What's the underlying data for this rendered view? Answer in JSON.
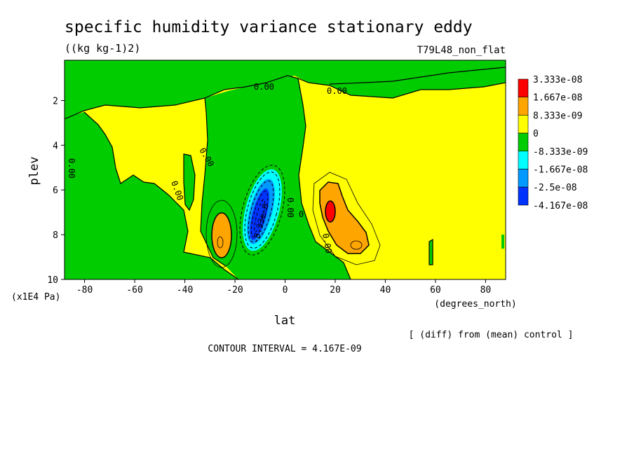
{
  "chart_data": {
    "type": "heatmap",
    "title": "specific humidity variance stationary eddy",
    "units": "((kg kg-1)2)",
    "run_label": "T79L48_non_flat",
    "xlabel": "lat",
    "xunits": "(degrees_north)",
    "ylabel": "plev",
    "yunits": "(x1E4 Pa)",
    "xlim": [
      -88,
      88
    ],
    "ylim": [
      10,
      0.2
    ],
    "x_ticks": [
      -80,
      -60,
      -40,
      -20,
      0,
      20,
      40,
      60,
      80
    ],
    "y_ticks": [
      2,
      4,
      6,
      8,
      10
    ],
    "colorbar": {
      "labels": [
        "3.333e-08",
        "1.667e-08",
        "8.333e-09",
        "0",
        "-8.333e-09",
        "-1.667e-08",
        "-2.5e-08",
        "-4.167e-08"
      ],
      "colors": [
        "#ff0000",
        "#ffa500",
        "#ffff00",
        "#00cc00",
        "#00ffff",
        "#0099ff",
        "#0033ff"
      ]
    },
    "contour_labels": [
      "0.00",
      "0.00",
      "0.00",
      "0.00",
      "0.00",
      "0.00",
      "0.00",
      "0",
      "-8.33e-0"
    ],
    "contour_interval": "CONTOUR INTERVAL = 4.167E-09",
    "footnote": "[ (diff) from (mean) control ]",
    "features": [
      {
        "lat": -10,
        "plev": 7.5,
        "value": -4.167e-08
      },
      {
        "lat": -26,
        "plev": 8.0,
        "value": 1.2e-08
      },
      {
        "lat": 19,
        "plev": 7.0,
        "value": 3.333e-08
      },
      {
        "lat": 28,
        "plev": 8.5,
        "value": 1e-08
      }
    ]
  }
}
